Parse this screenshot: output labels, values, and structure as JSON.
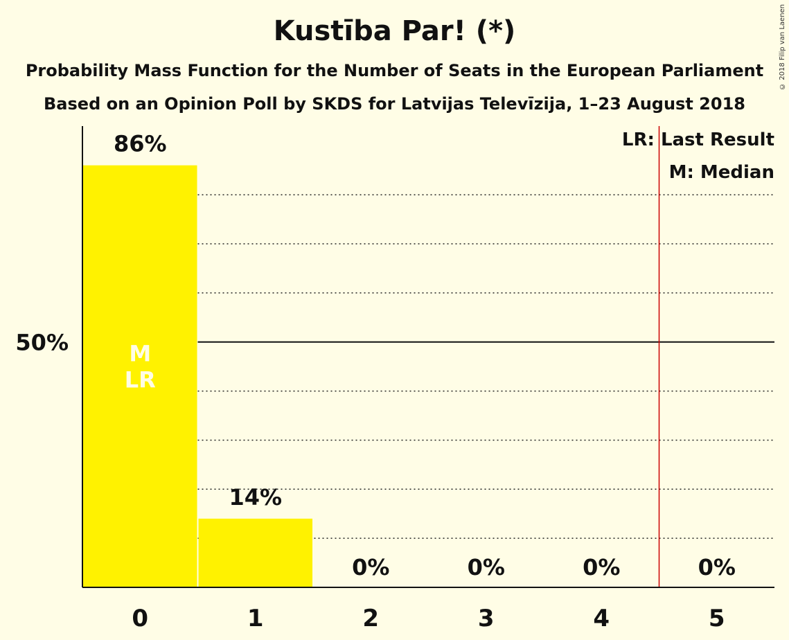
{
  "copyright": "© 2018 Filip van Laenen",
  "chart_data": {
    "type": "bar",
    "title": "Kustība Par! (*)",
    "subtitle": [
      "Probability Mass Function for the Number of Seats in the European Parliament",
      "Based on an Opinion Poll by SKDS for Latvijas Televīzija, 1–23 August 2018"
    ],
    "categories": [
      "0",
      "1",
      "2",
      "3",
      "4",
      "5"
    ],
    "values": [
      86,
      14,
      0,
      0,
      0,
      0
    ],
    "value_labels": [
      "86%",
      "14%",
      "0%",
      "0%",
      "0%",
      "0%"
    ],
    "ylim": [
      0,
      94
    ],
    "y_tick_label": "50%",
    "y_tick_value": 50,
    "gridlines": [
      10,
      20,
      30,
      40,
      60,
      70,
      80
    ],
    "median_seat": "0",
    "last_result_seat": "0",
    "bar_markers": [
      "M",
      "LR"
    ],
    "majority_line_after_category": "4",
    "legend": [
      "LR: Last Result",
      "M: Median"
    ],
    "legend_position": "top-right",
    "colors": {
      "bar": "#fff200",
      "background": "#fffde6",
      "majority_line": "#cc0000",
      "marker_text": "#fffde6"
    }
  }
}
